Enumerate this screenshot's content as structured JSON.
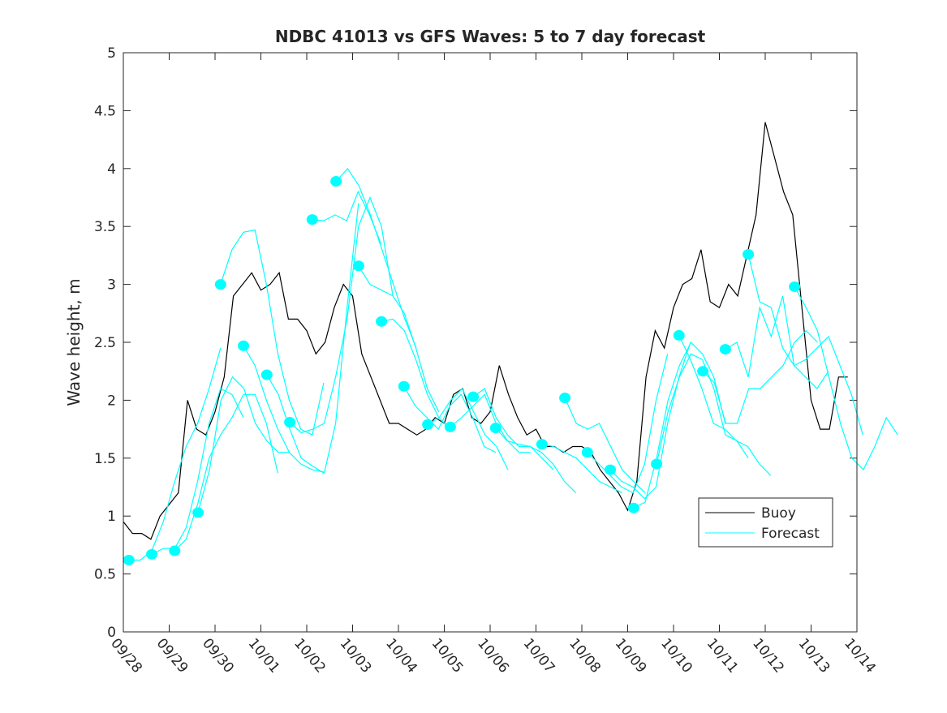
{
  "chart_data": {
    "type": "line",
    "title": "NDBC 41013 vs GFS Waves: 5 to 7 day forecast",
    "xlabel": "",
    "ylabel": "Wave height, m",
    "xlim": [
      0,
      16
    ],
    "ylim": [
      0,
      5
    ],
    "x_unit": "days since 09/28",
    "x_tick_labels": [
      "09/28",
      "09/29",
      "09/30",
      "10/01",
      "10/02",
      "10/03",
      "10/04",
      "10/05",
      "10/06",
      "10/07",
      "10/08",
      "10/09",
      "10/10",
      "10/11",
      "10/12",
      "10/13",
      "10/14"
    ],
    "y_ticks": [
      0,
      0.5,
      1,
      1.5,
      2,
      2.5,
      3,
      3.5,
      4,
      4.5,
      5
    ],
    "y_tick_labels": [
      "0",
      "0.5",
      "1",
      "1.5",
      "2",
      "2.5",
      "3",
      "3.5",
      "4",
      "4.5",
      "5"
    ],
    "legend": {
      "placement": "lower-right",
      "entries": [
        "Buoy",
        "Forecast"
      ]
    },
    "colors": {
      "buoy": "#000000",
      "forecast": "#00ffff"
    },
    "buoy": {
      "name": "Buoy",
      "x_start": 0,
      "x_step": 0.2,
      "values": [
        0.95,
        0.85,
        0.85,
        0.8,
        1.0,
        1.1,
        1.2,
        2.0,
        1.75,
        1.7,
        1.9,
        2.2,
        2.9,
        3.0,
        3.1,
        2.95,
        3.0,
        3.1,
        2.7,
        2.7,
        2.6,
        2.4,
        2.5,
        2.8,
        3.0,
        2.9,
        2.4,
        2.2,
        2.0,
        1.8,
        1.8,
        1.75,
        1.7,
        1.75,
        1.85,
        1.8,
        2.05,
        2.1,
        1.85,
        1.8,
        1.9,
        2.3,
        2.05,
        1.85,
        1.7,
        1.75,
        1.6,
        1.6,
        1.55,
        1.6,
        1.6,
        1.55,
        1.4,
        1.3,
        1.2,
        1.05,
        1.3,
        2.2,
        2.6,
        2.45,
        2.8,
        3.0,
        3.05,
        3.3,
        2.85,
        2.8,
        3.0,
        2.9,
        3.25,
        3.6,
        4.4,
        4.1,
        3.8,
        3.6,
        2.8,
        2.0,
        1.75,
        1.75,
        2.2,
        2.2
      ]
    },
    "forecast": {
      "name": "Forecast",
      "x_step": 0.25,
      "runs": [
        {
          "x0": 0.12,
          "values": [
            0.62,
            0.62,
            0.7,
            0.95,
            1.3,
            1.6,
            1.8,
            2.1,
            2.45
          ]
        },
        {
          "x0": 0.62,
          "values": [
            0.67,
            0.72,
            0.72,
            0.9,
            1.3,
            1.8,
            2.1,
            2.05,
            1.85
          ]
        },
        {
          "x0": 1.12,
          "values": [
            0.7,
            0.8,
            1.1,
            1.5,
            1.7,
            1.85,
            2.05,
            2.05,
            1.8,
            1.37
          ]
        },
        {
          "x0": 1.63,
          "values": [
            1.03,
            1.4,
            2.0,
            2.2,
            2.1,
            1.8,
            1.65,
            1.55,
            1.55
          ]
        },
        {
          "x0": 2.12,
          "values": [
            3.0,
            3.3,
            3.45,
            3.47,
            3.0,
            2.4,
            2.0,
            1.75,
            1.7,
            2.15
          ]
        },
        {
          "x0": 2.62,
          "values": [
            2.47,
            2.3,
            2.0,
            1.75,
            1.55,
            1.45,
            1.4,
            1.38
          ]
        },
        {
          "x0": 3.13,
          "values": [
            2.22,
            2.05,
            1.75,
            1.5,
            1.43,
            1.37,
            1.8,
            2.8,
            3.7
          ]
        },
        {
          "x0": 3.63,
          "values": [
            1.81,
            1.72,
            1.75,
            1.8,
            2.2,
            2.7,
            3.5,
            3.75,
            3.5,
            2.9
          ]
        },
        {
          "x0": 4.12,
          "values": [
            3.56,
            3.55,
            3.6,
            3.55,
            3.8,
            3.6,
            3.35
          ]
        },
        {
          "x0": 4.64,
          "values": [
            3.89,
            4.0,
            3.85,
            3.6,
            3.3,
            3.0,
            2.7,
            2.45
          ]
        },
        {
          "x0": 5.13,
          "values": [
            3.16,
            3.0,
            2.95,
            2.9,
            2.75,
            2.45,
            2.1,
            1.9
          ]
        },
        {
          "x0": 5.63,
          "values": [
            2.68,
            2.7,
            2.6,
            2.35,
            2.05,
            1.85,
            1.75
          ]
        },
        {
          "x0": 6.12,
          "values": [
            2.12,
            1.95,
            1.85,
            1.75,
            1.95,
            2.05,
            1.85,
            1.6,
            1.55
          ]
        },
        {
          "x0": 6.64,
          "values": [
            1.79,
            1.85,
            2.0,
            2.1,
            1.9,
            1.7,
            1.6,
            1.4
          ]
        },
        {
          "x0": 7.13,
          "values": [
            1.77,
            1.85,
            1.95,
            2.05,
            1.8,
            1.65,
            1.55,
            1.55
          ]
        },
        {
          "x0": 7.63,
          "values": [
            2.03,
            2.1,
            1.85,
            1.7,
            1.6,
            1.6,
            1.5,
            1.4
          ]
        },
        {
          "x0": 8.12,
          "values": [
            1.76,
            1.65,
            1.62,
            1.6,
            1.55,
            1.45,
            1.3,
            1.2
          ]
        },
        {
          "x0": 9.13,
          "values": [
            1.62,
            1.6,
            1.55,
            1.5,
            1.4,
            1.3,
            1.25,
            1.2
          ]
        },
        {
          "x0": 9.63,
          "values": [
            2.02,
            1.8,
            1.75,
            1.8,
            1.6,
            1.4,
            1.3,
            1.2
          ]
        },
        {
          "x0": 10.12,
          "values": [
            1.55,
            1.45,
            1.35,
            1.25,
            1.2,
            1.45,
            2.0,
            2.4
          ]
        },
        {
          "x0": 10.62,
          "values": [
            1.4,
            1.3,
            1.25,
            1.15,
            1.25,
            1.8,
            2.2,
            2.5
          ]
        },
        {
          "x0": 11.13,
          "values": [
            1.07,
            1.12,
            1.5,
            2.0,
            2.3,
            2.5,
            2.4,
            2.2,
            1.8
          ]
        },
        {
          "x0": 11.63,
          "values": [
            1.45,
            1.9,
            2.2,
            2.4,
            2.35,
            2.1,
            1.7,
            1.65,
            1.5
          ]
        },
        {
          "x0": 12.12,
          "values": [
            2.56,
            2.35,
            2.1,
            1.8,
            1.75,
            1.65,
            1.6,
            1.45,
            1.35
          ]
        },
        {
          "x0": 12.64,
          "values": [
            2.25,
            2.15,
            1.8,
            1.8,
            2.1,
            2.1,
            2.2,
            2.3,
            2.5,
            2.6,
            2.5
          ]
        },
        {
          "x0": 13.13,
          "values": [
            2.44,
            2.5,
            2.2,
            2.8,
            2.55,
            2.9,
            2.3,
            2.2,
            2.1,
            2.25
          ]
        },
        {
          "x0": 13.63,
          "values": [
            3.26,
            2.85,
            2.8,
            2.45,
            2.3,
            2.35,
            2.45,
            2.55,
            2.3,
            2.05,
            1.7
          ]
        },
        {
          "x0": 14.64,
          "values": [
            2.98,
            2.8,
            2.6,
            2.2,
            1.8,
            1.5,
            1.4,
            1.6,
            1.85,
            1.7
          ]
        }
      ]
    }
  }
}
